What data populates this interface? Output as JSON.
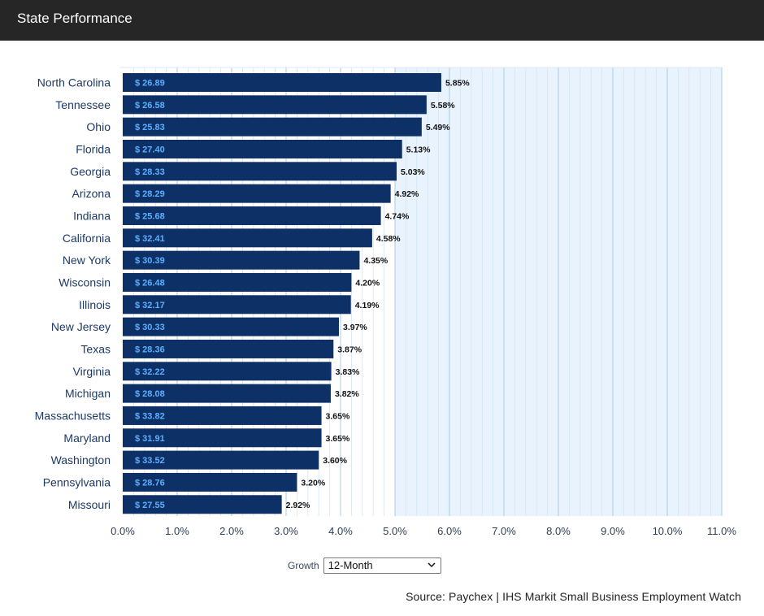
{
  "header": {
    "title": "State Performance"
  },
  "controls": {
    "growth_label": "Growth",
    "growth_selected": "12-Month"
  },
  "footer": {
    "source": "Source: Paychex | IHS Markit Small Business Employment Watch"
  },
  "colors": {
    "bar": "#0d3066",
    "bar_label": "#5db0ff",
    "plot_bg": "#e8f3fd",
    "gridline": "#a9cbe6",
    "header_bg": "#262626"
  },
  "chart_data": {
    "type": "bar",
    "orientation": "horizontal",
    "title": "",
    "xlabel": "",
    "ylabel": "",
    "xlim": [
      0,
      11
    ],
    "x_ticks": [
      "0.0%",
      "1.0%",
      "2.0%",
      "3.0%",
      "4.0%",
      "5.0%",
      "6.0%",
      "7.0%",
      "8.0%",
      "9.0%",
      "10.0%",
      "11.0%"
    ],
    "grid": true,
    "categories": [
      "North Carolina",
      "Tennessee",
      "Ohio",
      "Florida",
      "Georgia",
      "Arizona",
      "Indiana",
      "California",
      "New York",
      "Wisconsin",
      "Illinois",
      "New Jersey",
      "Texas",
      "Virginia",
      "Michigan",
      "Massachusetts",
      "Maryland",
      "Washington",
      "Pennsylvania",
      "Missouri"
    ],
    "values": [
      5.85,
      5.58,
      5.49,
      5.13,
      5.03,
      4.92,
      4.74,
      4.58,
      4.35,
      4.2,
      4.19,
      3.97,
      3.87,
      3.83,
      3.82,
      3.65,
      3.65,
      3.6,
      3.2,
      2.92
    ],
    "value_labels": [
      "5.85%",
      "5.58%",
      "5.49%",
      "5.13%",
      "5.03%",
      "4.92%",
      "4.74%",
      "4.58%",
      "4.35%",
      "4.20%",
      "4.19%",
      "3.97%",
      "3.87%",
      "3.83%",
      "3.82%",
      "3.65%",
      "3.65%",
      "3.60%",
      "3.20%",
      "2.92%"
    ],
    "bar_labels": [
      "$ 26.89",
      "$ 26.58",
      "$ 25.83",
      "$ 27.40",
      "$ 28.33",
      "$ 28.29",
      "$ 25.68",
      "$ 32.41",
      "$ 30.39",
      "$ 26.48",
      "$ 32.17",
      "$ 30.33",
      "$ 28.36",
      "$ 32.22",
      "$ 28.08",
      "$ 33.82",
      "$ 31.91",
      "$ 33.52",
      "$ 28.76",
      "$ 27.55"
    ]
  }
}
